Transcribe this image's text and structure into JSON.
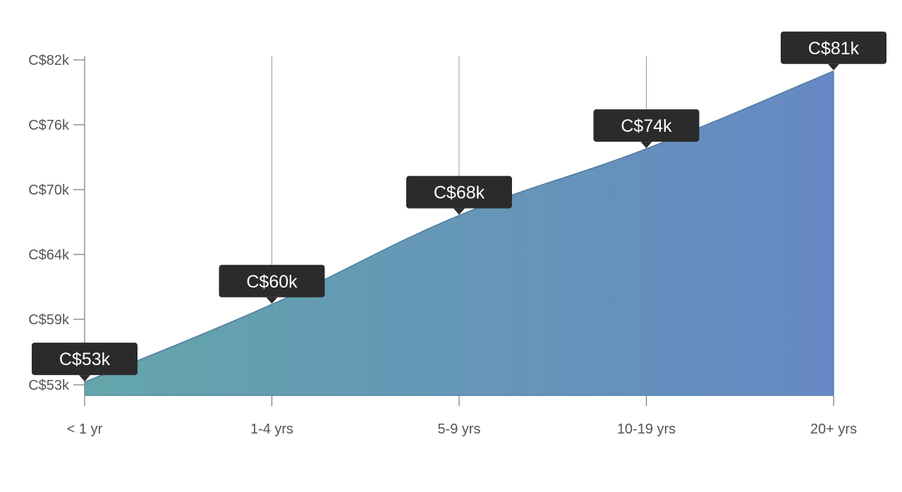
{
  "chart_data": {
    "type": "area",
    "categories": [
      "< 1 yr",
      "1-4 yrs",
      "5-9 yrs",
      "10-19 yrs",
      "20+ yrs"
    ],
    "values": [
      53000,
      60000,
      68000,
      74000,
      81000
    ],
    "data_labels": [
      "C$53k",
      "C$60k",
      "C$68k",
      "C$74k",
      "C$81k"
    ],
    "y_ticks": [
      "C$53k",
      "C$59k",
      "C$64k",
      "C$70k",
      "C$76k",
      "C$82k"
    ],
    "ylim": [
      51800,
      82000
    ],
    "grid": {
      "vertical": true,
      "horizontal": false
    },
    "colors": {
      "gradient_start": "#5fa3a8",
      "gradient_end": "#6284c2",
      "line": "#4d7a9f",
      "gridline": "#9a9a9a",
      "axis": "#777777",
      "callout_bg": "#2b2b2b",
      "callout_text": "#ffffff",
      "tick_text": "#555555"
    }
  }
}
